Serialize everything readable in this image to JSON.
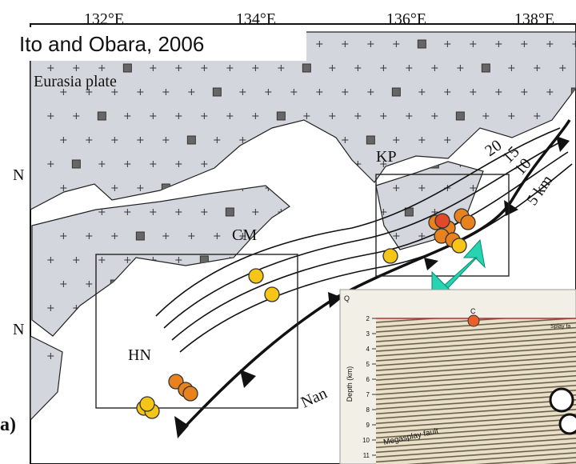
{
  "citation": "Ito and Obara, 2006",
  "map": {
    "longitude_labels": [
      "132°E",
      "134°E",
      "136°E",
      "138°E"
    ],
    "latitude_labels": [
      "N",
      "N"
    ],
    "plate_label": "Eurasia plate",
    "region_labels": [
      "KP",
      "CM",
      "HN"
    ],
    "trough_label": "Nan",
    "contour_labels": [
      "20",
      "15",
      "10",
      "5 km"
    ],
    "panel_label": "a)"
  },
  "inset": {
    "labels": [
      "Q",
      "C"
    ],
    "y_axis_label": "Depth (km)",
    "depth_ticks": [
      2,
      3,
      4,
      5,
      6,
      7,
      8,
      9,
      10,
      11
    ],
    "fault_labels": [
      "Megasplay fault",
      "Splay fa"
    ]
  }
}
